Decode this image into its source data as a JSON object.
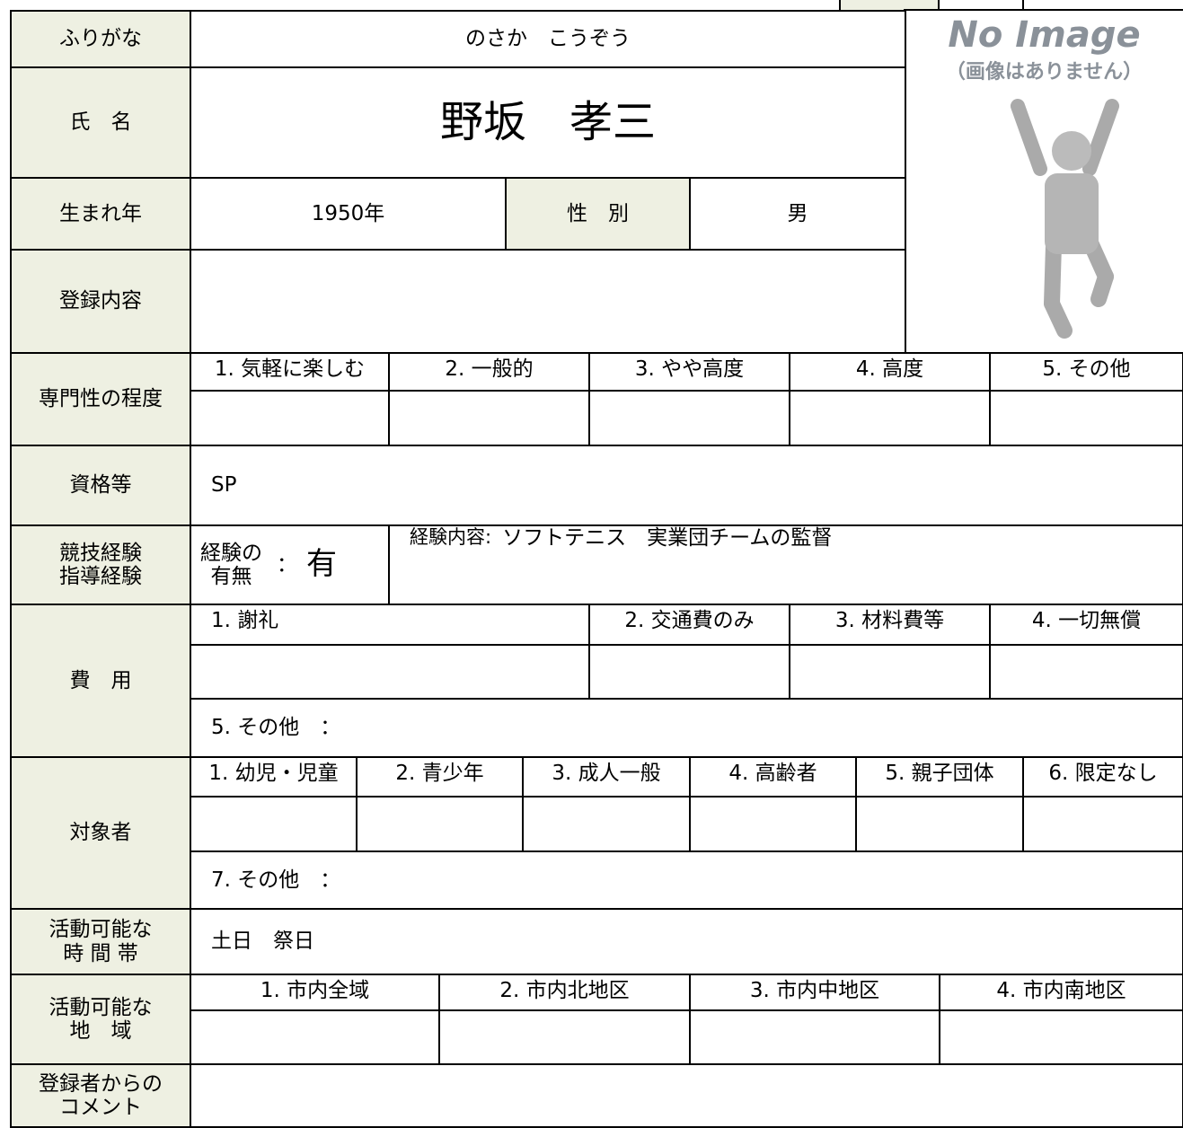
{
  "header": {
    "furigana_label": "ふりがな",
    "furigana": "のさか　こうぞう",
    "name_label": "氏　名",
    "name": "野坂　孝三",
    "birth_label": "生まれ年",
    "birth": "1950年",
    "sex_label": "性　別",
    "sex": "男",
    "registration_label": "登録内容"
  },
  "image": {
    "title": "No Image",
    "caption": "（画像はありません）"
  },
  "expertise": {
    "label": "専門性の程度",
    "options": [
      "1. 気軽に楽しむ",
      "2. 一般的",
      "3. やや高度",
      "4. 高度",
      "5. その他"
    ],
    "selected": 3
  },
  "qualification": {
    "label": "資格等",
    "value": "SP"
  },
  "experience": {
    "label": [
      "競技経験",
      "指導経験"
    ],
    "has_label": [
      "経験の",
      "有無"
    ],
    "colon": "：",
    "has": "有",
    "content_label": "経験内容:",
    "content": "ソフトテニス　実業団チームの監督"
  },
  "fee": {
    "label": "費　用",
    "options": [
      "1. 謝礼",
      "2. 交通費のみ",
      "3. 材料費等",
      "4. 一切無償"
    ],
    "selected": 3,
    "other": "5. その他　："
  },
  "target": {
    "label": "対象者",
    "options": [
      "1. 幼児・児童",
      "2. 青少年",
      "3. 成人一般",
      "4. 高齢者",
      "5. 親子団体",
      "6. 限定なし"
    ],
    "selected": 5,
    "other": "7. その他　："
  },
  "hours": {
    "label": [
      "活動可能な",
      "時 間 帯"
    ],
    "value": "土日　祭日"
  },
  "area": {
    "label": [
      "活動可能な",
      "地　域"
    ],
    "options": [
      "1. 市内全域",
      "2. 市内北地区",
      "3. 市内中地区",
      "4. 市内南地区"
    ],
    "selected": 0
  },
  "comment": {
    "label": [
      "登録者からの",
      "コメント"
    ]
  }
}
